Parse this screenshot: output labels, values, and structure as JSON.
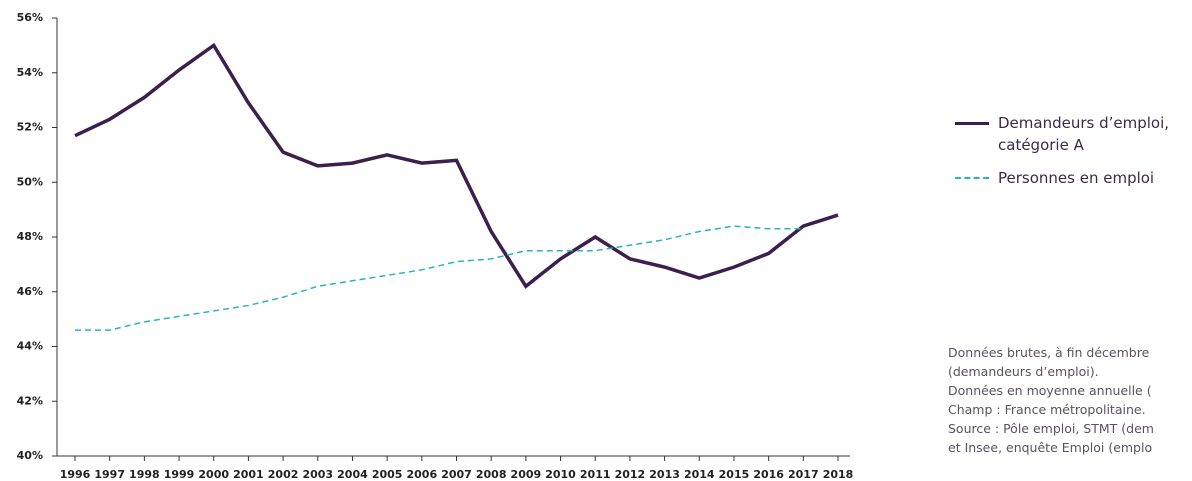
{
  "chart_data": {
    "type": "line",
    "x": [
      "1996",
      "1997",
      "1998",
      "1999",
      "2000",
      "2001",
      "2002",
      "2003",
      "2004",
      "2005",
      "2006",
      "2007",
      "2008",
      "2009",
      "2010",
      "2011",
      "2012",
      "2013",
      "2014",
      "2015",
      "2016",
      "2017",
      "2018"
    ],
    "series": [
      {
        "name": "Demandeurs d’emploi, catégorie A",
        "color": "#3d1f4e",
        "style": "solid",
        "values": [
          51.7,
          52.3,
          53.1,
          54.1,
          55.0,
          52.9,
          51.1,
          50.6,
          50.7,
          51.0,
          50.7,
          50.8,
          48.2,
          46.2,
          47.2,
          48.0,
          47.2,
          46.9,
          46.5,
          46.9,
          47.4,
          48.4,
          48.8
        ]
      },
      {
        "name": "Personnes en emploi",
        "color": "#2bb3c0",
        "style": "dashed",
        "values": [
          44.6,
          44.6,
          44.9,
          45.1,
          45.3,
          45.5,
          45.8,
          46.2,
          46.4,
          46.6,
          46.8,
          47.1,
          47.2,
          47.5,
          47.5,
          47.5,
          47.7,
          47.9,
          48.2,
          48.4,
          48.3,
          48.3,
          null
        ]
      }
    ],
    "ylim": [
      40,
      56
    ],
    "yticks": [
      {
        "value": 40,
        "label": "40%"
      },
      {
        "value": 42,
        "label": "42%"
      },
      {
        "value": 44,
        "label": "44%"
      },
      {
        "value": 46,
        "label": "46%"
      },
      {
        "value": 48,
        "label": "48%"
      },
      {
        "value": 50,
        "label": "50%"
      },
      {
        "value": 52,
        "label": "52%"
      },
      {
        "value": 54,
        "label": "54%"
      },
      {
        "value": 56,
        "label": "56%"
      }
    ],
    "grid": false,
    "notes": [
      "Données brutes, à fin décembre",
      "(demandeurs d’emploi).",
      "Données en moyenne annuelle (",
      "Champ : France métropolitaine.",
      "Source : Pôle emploi, STMT (dem",
      "et Insee, enquête Emploi (emplo"
    ]
  }
}
